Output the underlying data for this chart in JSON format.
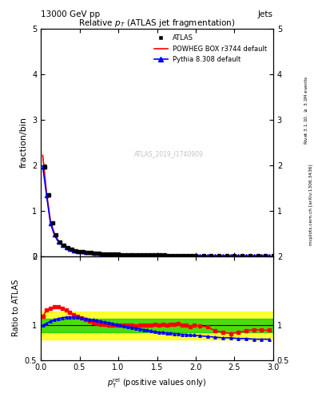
{
  "title": "Relative $p_T$ (ATLAS jet fragmentation)",
  "header_left": "13000 GeV pp",
  "header_right": "Jets",
  "ylabel_main": "fraction/bin",
  "ylabel_ratio": "Ratio to ATLAS",
  "right_label": "Rivet 3.1.10, $\\geq$ 3.1M events",
  "right_label2": "mcplots.cern.ch [arXiv:1306.3436]",
  "watermark": "ATLAS_2019_I1740909",
  "atlas_x": [
    0.05,
    0.1,
    0.15,
    0.2,
    0.25,
    0.3,
    0.35,
    0.4,
    0.45,
    0.5,
    0.55,
    0.6,
    0.65,
    0.7,
    0.75,
    0.8,
    0.85,
    0.9,
    0.95,
    1.0,
    1.05,
    1.1,
    1.15,
    1.2,
    1.25,
    1.3,
    1.35,
    1.4,
    1.45,
    1.5,
    1.55,
    1.6,
    1.65,
    1.7,
    1.75,
    1.8,
    1.85,
    1.9,
    1.95,
    2.0,
    2.1,
    2.2,
    2.3,
    2.4,
    2.5,
    2.6,
    2.7,
    2.8,
    2.9,
    3.0
  ],
  "atlas_y": [
    1.97,
    1.35,
    0.73,
    0.48,
    0.32,
    0.24,
    0.19,
    0.16,
    0.13,
    0.11,
    0.1,
    0.09,
    0.08,
    0.07,
    0.07,
    0.06,
    0.06,
    0.05,
    0.05,
    0.05,
    0.04,
    0.04,
    0.04,
    0.04,
    0.04,
    0.03,
    0.03,
    0.03,
    0.03,
    0.03,
    0.03,
    0.03,
    0.02,
    0.02,
    0.02,
    0.02,
    0.02,
    0.02,
    0.02,
    0.02,
    0.02,
    0.02,
    0.02,
    0.01,
    0.01,
    0.01,
    0.01,
    0.01,
    0.01,
    0.01
  ],
  "atlas_err": [
    0.05,
    0.03,
    0.02,
    0.01,
    0.01,
    0.01,
    0.005,
    0.005,
    0.004,
    0.003,
    0.003,
    0.003,
    0.002,
    0.002,
    0.002,
    0.002,
    0.002,
    0.002,
    0.002,
    0.002,
    0.001,
    0.001,
    0.001,
    0.001,
    0.001,
    0.001,
    0.001,
    0.001,
    0.001,
    0.001,
    0.001,
    0.001,
    0.001,
    0.001,
    0.001,
    0.001,
    0.001,
    0.001,
    0.001,
    0.001,
    0.001,
    0.001,
    0.001,
    0.001,
    0.001,
    0.001,
    0.001,
    0.001,
    0.001,
    0.001
  ],
  "powheg_x": [
    0.025,
    0.075,
    0.125,
    0.175,
    0.225,
    0.275,
    0.325,
    0.375,
    0.425,
    0.475,
    0.525,
    0.575,
    0.625,
    0.675,
    0.725,
    0.775,
    0.825,
    0.875,
    0.925,
    0.975,
    1.025,
    1.075,
    1.125,
    1.175,
    1.225,
    1.275,
    1.325,
    1.375,
    1.425,
    1.475,
    1.525,
    1.575,
    1.625,
    1.675,
    1.725,
    1.775,
    1.825,
    1.875,
    1.925,
    1.975,
    2.05,
    2.15,
    2.25,
    2.35,
    2.45,
    2.55,
    2.65,
    2.75,
    2.85,
    2.95
  ],
  "powheg_y": [
    2.22,
    1.38,
    0.77,
    0.51,
    0.35,
    0.26,
    0.2,
    0.17,
    0.14,
    0.12,
    0.11,
    0.09,
    0.08,
    0.07,
    0.07,
    0.06,
    0.05,
    0.05,
    0.05,
    0.04,
    0.04,
    0.04,
    0.03,
    0.03,
    0.03,
    0.03,
    0.03,
    0.03,
    0.02,
    0.02,
    0.02,
    0.02,
    0.02,
    0.02,
    0.02,
    0.02,
    0.02,
    0.02,
    0.02,
    0.02,
    0.02,
    0.01,
    0.01,
    0.01,
    0.01,
    0.01,
    0.01,
    0.01,
    0.01,
    0.01
  ],
  "pythia_x": [
    0.025,
    0.075,
    0.125,
    0.175,
    0.225,
    0.275,
    0.325,
    0.375,
    0.425,
    0.475,
    0.525,
    0.575,
    0.625,
    0.675,
    0.725,
    0.775,
    0.825,
    0.875,
    0.925,
    0.975,
    1.025,
    1.075,
    1.125,
    1.175,
    1.225,
    1.275,
    1.325,
    1.375,
    1.425,
    1.475,
    1.525,
    1.575,
    1.625,
    1.675,
    1.725,
    1.775,
    1.825,
    1.875,
    1.925,
    1.975,
    2.05,
    2.15,
    2.25,
    2.35,
    2.45,
    2.55,
    2.65,
    2.75,
    2.85,
    2.95
  ],
  "pythia_y": [
    1.97,
    1.33,
    0.72,
    0.47,
    0.32,
    0.24,
    0.19,
    0.16,
    0.13,
    0.11,
    0.1,
    0.09,
    0.08,
    0.07,
    0.07,
    0.06,
    0.05,
    0.05,
    0.05,
    0.04,
    0.04,
    0.04,
    0.03,
    0.03,
    0.03,
    0.03,
    0.03,
    0.03,
    0.03,
    0.02,
    0.02,
    0.02,
    0.02,
    0.02,
    0.02,
    0.02,
    0.02,
    0.02,
    0.02,
    0.02,
    0.02,
    0.01,
    0.01,
    0.01,
    0.01,
    0.01,
    0.01,
    0.01,
    0.01,
    0.01
  ],
  "ratio_powheg_x": [
    0.025,
    0.075,
    0.125,
    0.175,
    0.225,
    0.275,
    0.325,
    0.375,
    0.425,
    0.475,
    0.525,
    0.575,
    0.625,
    0.675,
    0.725,
    0.775,
    0.825,
    0.875,
    0.925,
    0.975,
    1.025,
    1.075,
    1.125,
    1.175,
    1.225,
    1.275,
    1.325,
    1.375,
    1.425,
    1.475,
    1.525,
    1.575,
    1.625,
    1.675,
    1.725,
    1.775,
    1.825,
    1.875,
    1.925,
    1.975,
    2.05,
    2.15,
    2.25,
    2.35,
    2.45,
    2.55,
    2.65,
    2.75,
    2.85,
    2.95
  ],
  "ratio_powheg_y": [
    1.13,
    1.22,
    1.25,
    1.27,
    1.27,
    1.25,
    1.22,
    1.19,
    1.16,
    1.13,
    1.11,
    1.08,
    1.06,
    1.04,
    1.03,
    1.02,
    1.01,
    1.0,
    1.0,
    1.0,
    1.0,
    1.0,
    1.0,
    1.0,
    0.99,
    1.0,
    1.0,
    1.0,
    1.0,
    1.01,
    1.0,
    1.02,
    1.0,
    1.02,
    1.02,
    1.03,
    1.0,
    1.0,
    0.98,
    1.0,
    0.99,
    0.98,
    0.92,
    0.9,
    0.88,
    0.9,
    0.92,
    0.94,
    0.93,
    0.93
  ],
  "ratio_pythia_x": [
    0.025,
    0.075,
    0.125,
    0.175,
    0.225,
    0.275,
    0.325,
    0.375,
    0.425,
    0.475,
    0.525,
    0.575,
    0.625,
    0.675,
    0.725,
    0.775,
    0.825,
    0.875,
    0.925,
    0.975,
    1.025,
    1.075,
    1.125,
    1.175,
    1.225,
    1.275,
    1.325,
    1.375,
    1.425,
    1.475,
    1.525,
    1.575,
    1.625,
    1.675,
    1.725,
    1.775,
    1.825,
    1.875,
    1.925,
    1.975,
    2.05,
    2.15,
    2.25,
    2.35,
    2.45,
    2.55,
    2.65,
    2.75,
    2.85,
    2.95
  ],
  "ratio_pythia_y": [
    1.0,
    1.03,
    1.06,
    1.08,
    1.1,
    1.11,
    1.12,
    1.12,
    1.12,
    1.12,
    1.11,
    1.1,
    1.09,
    1.08,
    1.07,
    1.06,
    1.05,
    1.04,
    1.03,
    1.01,
    1.0,
    0.99,
    0.98,
    0.97,
    0.96,
    0.95,
    0.94,
    0.93,
    0.92,
    0.91,
    0.9,
    0.9,
    0.89,
    0.89,
    0.88,
    0.88,
    0.87,
    0.87,
    0.86,
    0.86,
    0.85,
    0.84,
    0.83,
    0.82,
    0.82,
    0.81,
    0.81,
    0.8,
    0.8,
    0.8
  ],
  "xlim": [
    0,
    3
  ],
  "ylim_main": [
    0,
    5
  ],
  "ylim_ratio": [
    0.5,
    2.0
  ],
  "color_atlas": "#000000",
  "color_powheg": "#ff0000",
  "color_pythia": "#0000ff",
  "color_green": "#00cc00",
  "color_yellow": "#ffff00"
}
